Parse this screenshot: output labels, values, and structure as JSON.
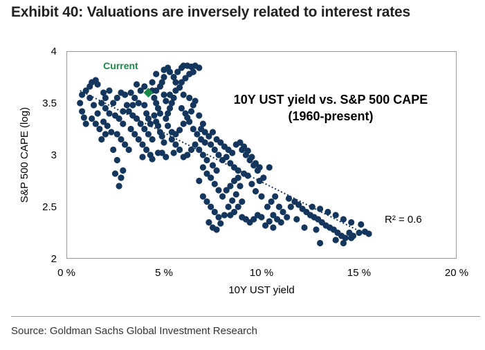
{
  "exhibit_title": "Exhibit 40: Valuations are inversely related to interest rates",
  "source": "Source: Goldman Sachs Global Investment Research",
  "chart_data": {
    "type": "scatter",
    "annotation_line1": "10Y UST yield vs. S&P 500 CAPE",
    "annotation_line2": "(1960-present)",
    "xlabel": "10Y UST yield",
    "ylabel": "S&P 500 CAPE (log)",
    "x_ticks": [
      "0 %",
      "5 %",
      "10 %",
      "15 %",
      "20 %"
    ],
    "y_ticks": [
      "2",
      "2.5",
      "3",
      "3.5",
      "4"
    ],
    "xlim": [
      0,
      20
    ],
    "ylim": [
      2,
      4
    ],
    "r_squared_label": "R² = 0.6",
    "trendline": {
      "x": [
        0.7,
        15.5
      ],
      "y": [
        3.62,
        2.22
      ]
    },
    "current_label": "Current",
    "current_point": {
      "x": 4.2,
      "y": 3.6
    },
    "colors": {
      "points": "#14365d",
      "current": "#1a8a47",
      "trendline": "#14365d"
    },
    "series": [
      {
        "points": [
          [
            0.7,
            3.5
          ],
          [
            0.8,
            3.42
          ],
          [
            0.9,
            3.36
          ],
          [
            1.0,
            3.3
          ],
          [
            0.8,
            3.58
          ],
          [
            1.0,
            3.62
          ],
          [
            1.2,
            3.66
          ],
          [
            1.3,
            3.7
          ],
          [
            1.5,
            3.72
          ],
          [
            1.6,
            3.68
          ],
          [
            1.2,
            3.55
          ],
          [
            1.4,
            3.48
          ],
          [
            1.6,
            3.4
          ],
          [
            1.3,
            3.35
          ],
          [
            1.5,
            3.3
          ],
          [
            1.7,
            3.25
          ],
          [
            1.8,
            3.5
          ],
          [
            2.0,
            3.45
          ],
          [
            2.2,
            3.4
          ],
          [
            1.9,
            3.32
          ],
          [
            2.1,
            3.28
          ],
          [
            2.3,
            3.22
          ],
          [
            2.0,
            3.2
          ],
          [
            1.8,
            3.15
          ],
          [
            2.4,
            3.5
          ],
          [
            2.6,
            3.55
          ],
          [
            2.8,
            3.6
          ],
          [
            3.0,
            3.58
          ],
          [
            2.5,
            3.38
          ],
          [
            2.7,
            3.35
          ],
          [
            2.9,
            3.3
          ],
          [
            2.6,
            3.2
          ],
          [
            2.8,
            3.15
          ],
          [
            3.0,
            3.1
          ],
          [
            3.2,
            3.05
          ],
          [
            2.4,
            3.05
          ],
          [
            2.6,
            2.95
          ],
          [
            2.9,
            2.85
          ],
          [
            2.5,
            2.82
          ],
          [
            2.8,
            2.78
          ],
          [
            2.7,
            2.7
          ],
          [
            3.3,
            3.6
          ],
          [
            3.5,
            3.55
          ],
          [
            3.7,
            3.5
          ],
          [
            3.2,
            3.42
          ],
          [
            3.4,
            3.38
          ],
          [
            3.6,
            3.35
          ],
          [
            3.8,
            3.3
          ],
          [
            3.3,
            3.25
          ],
          [
            3.5,
            3.2
          ],
          [
            3.7,
            3.15
          ],
          [
            3.9,
            3.1
          ],
          [
            4.0,
            3.48
          ],
          [
            4.1,
            3.4
          ],
          [
            4.2,
            3.35
          ],
          [
            4.3,
            3.3
          ],
          [
            4.0,
            3.25
          ],
          [
            4.2,
            3.2
          ],
          [
            4.4,
            3.15
          ],
          [
            4.1,
            3.05
          ],
          [
            4.3,
            3.0
          ],
          [
            3.9,
            2.98
          ],
          [
            4.5,
            3.55
          ],
          [
            4.6,
            3.5
          ],
          [
            4.7,
            3.45
          ],
          [
            4.8,
            3.4
          ],
          [
            4.5,
            3.38
          ],
          [
            4.6,
            3.32
          ],
          [
            4.7,
            3.28
          ],
          [
            4.8,
            3.22
          ],
          [
            4.9,
            3.18
          ],
          [
            5.0,
            3.12
          ],
          [
            4.6,
            3.62
          ],
          [
            4.8,
            3.66
          ],
          [
            4.9,
            3.7
          ],
          [
            5.0,
            3.75
          ],
          [
            4.4,
            3.7
          ],
          [
            4.6,
            3.78
          ],
          [
            5.0,
            3.82
          ],
          [
            5.2,
            3.84
          ],
          [
            5.3,
            3.8
          ],
          [
            5.5,
            3.75
          ],
          [
            5.6,
            3.7
          ],
          [
            5.8,
            3.65
          ],
          [
            5.7,
            3.8
          ],
          [
            5.9,
            3.84
          ],
          [
            6.0,
            3.86
          ],
          [
            6.2,
            3.86
          ],
          [
            6.4,
            3.85
          ],
          [
            6.6,
            3.86
          ],
          [
            6.8,
            3.84
          ],
          [
            6.5,
            3.8
          ],
          [
            6.3,
            3.78
          ],
          [
            6.1,
            3.74
          ],
          [
            5.9,
            3.7
          ],
          [
            5.6,
            3.62
          ],
          [
            5.5,
            3.55
          ],
          [
            5.4,
            3.5
          ],
          [
            5.3,
            3.45
          ],
          [
            5.2,
            3.4
          ],
          [
            5.1,
            3.35
          ],
          [
            5.2,
            3.28
          ],
          [
            5.4,
            3.22
          ],
          [
            5.6,
            3.2
          ],
          [
            5.8,
            3.24
          ],
          [
            6.0,
            3.3
          ],
          [
            6.2,
            3.36
          ],
          [
            6.4,
            3.42
          ],
          [
            6.5,
            3.48
          ],
          [
            6.6,
            3.52
          ],
          [
            6.3,
            3.55
          ],
          [
            6.0,
            3.58
          ],
          [
            5.9,
            3.45
          ],
          [
            6.1,
            3.4
          ],
          [
            6.3,
            3.32
          ],
          [
            6.5,
            3.25
          ],
          [
            6.7,
            3.2
          ],
          [
            6.9,
            3.15
          ],
          [
            7.0,
            3.3
          ],
          [
            6.8,
            3.38
          ],
          [
            6.6,
            3.1
          ],
          [
            6.4,
            3.05
          ],
          [
            6.2,
            3.0
          ],
          [
            6.0,
            2.98
          ],
          [
            5.8,
            3.05
          ],
          [
            5.6,
            3.1
          ],
          [
            5.4,
            3.15
          ],
          [
            6.8,
            3.05
          ],
          [
            7.0,
            3.0
          ],
          [
            7.2,
            2.95
          ],
          [
            7.1,
            3.12
          ],
          [
            7.3,
            3.18
          ],
          [
            7.5,
            3.22
          ],
          [
            7.4,
            3.1
          ],
          [
            7.6,
            3.05
          ],
          [
            7.8,
            3.0
          ],
          [
            8.0,
            2.95
          ],
          [
            7.7,
            3.15
          ],
          [
            7.9,
            3.12
          ],
          [
            8.1,
            3.08
          ],
          [
            8.3,
            3.05
          ],
          [
            8.5,
            3.02
          ],
          [
            8.2,
            2.98
          ],
          [
            8.4,
            2.92
          ],
          [
            8.6,
            2.88
          ],
          [
            8.8,
            2.85
          ],
          [
            9.0,
            3.05
          ],
          [
            9.2,
            3.0
          ],
          [
            9.4,
            2.95
          ],
          [
            9.6,
            2.9
          ],
          [
            9.8,
            2.85
          ],
          [
            8.7,
            3.1
          ],
          [
            8.9,
            3.12
          ],
          [
            9.1,
            3.08
          ],
          [
            9.3,
            3.04
          ],
          [
            9.5,
            2.98
          ],
          [
            9.7,
            2.92
          ],
          [
            9.9,
            2.88
          ],
          [
            7.0,
            2.88
          ],
          [
            7.2,
            2.82
          ],
          [
            7.4,
            2.78
          ],
          [
            7.6,
            2.72
          ],
          [
            7.8,
            2.66
          ],
          [
            7.5,
            2.9
          ],
          [
            7.7,
            2.85
          ],
          [
            6.8,
            2.75
          ],
          [
            7.0,
            2.6
          ],
          [
            7.2,
            2.55
          ],
          [
            7.4,
            2.5
          ],
          [
            7.6,
            2.45
          ],
          [
            7.8,
            2.4
          ],
          [
            7.3,
            2.35
          ],
          [
            7.5,
            2.3
          ],
          [
            7.7,
            2.28
          ],
          [
            7.9,
            2.34
          ],
          [
            8.1,
            2.42
          ],
          [
            8.3,
            2.5
          ],
          [
            8.5,
            2.56
          ],
          [
            8.7,
            2.62
          ],
          [
            8.0,
            2.6
          ],
          [
            8.2,
            2.66
          ],
          [
            8.4,
            2.7
          ],
          [
            8.6,
            2.75
          ],
          [
            8.8,
            2.78
          ],
          [
            9.0,
            2.4
          ],
          [
            9.2,
            2.38
          ],
          [
            9.4,
            2.35
          ],
          [
            9.6,
            2.38
          ],
          [
            9.8,
            2.42
          ],
          [
            10.0,
            2.4
          ],
          [
            10.3,
            2.5
          ],
          [
            10.5,
            2.55
          ],
          [
            10.7,
            2.6
          ],
          [
            10.9,
            2.5
          ],
          [
            11.1,
            2.45
          ],
          [
            11.3,
            2.4
          ],
          [
            11.0,
            2.35
          ],
          [
            10.8,
            2.38
          ],
          [
            10.6,
            2.42
          ],
          [
            10.4,
            2.36
          ],
          [
            10.2,
            2.32
          ],
          [
            11.5,
            2.5
          ],
          [
            11.7,
            2.55
          ],
          [
            11.9,
            2.52
          ],
          [
            12.1,
            2.48
          ],
          [
            12.3,
            2.45
          ],
          [
            12.5,
            2.42
          ],
          [
            12.7,
            2.4
          ],
          [
            12.9,
            2.38
          ],
          [
            13.1,
            2.35
          ],
          [
            13.3,
            2.32
          ],
          [
            13.5,
            2.3
          ],
          [
            13.7,
            2.28
          ],
          [
            13.9,
            2.25
          ],
          [
            14.1,
            2.22
          ],
          [
            14.3,
            2.2
          ],
          [
            14.5,
            2.25
          ],
          [
            14.7,
            2.22
          ],
          [
            15.0,
            2.25
          ],
          [
            15.3,
            2.26
          ],
          [
            15.5,
            2.24
          ],
          [
            13.0,
            2.15
          ],
          [
            13.8,
            2.18
          ],
          [
            14.2,
            2.15
          ],
          [
            14.6,
            2.2
          ],
          [
            12.2,
            2.3
          ],
          [
            12.8,
            2.28
          ],
          [
            11.8,
            2.38
          ],
          [
            12.6,
            2.5
          ],
          [
            13.0,
            2.48
          ],
          [
            13.4,
            2.45
          ],
          [
            13.8,
            2.42
          ],
          [
            14.2,
            2.38
          ],
          [
            14.6,
            2.35
          ],
          [
            15.1,
            2.33
          ],
          [
            10.6,
            2.3
          ],
          [
            10.0,
            2.6
          ],
          [
            9.7,
            2.65
          ],
          [
            9.5,
            2.72
          ],
          [
            9.3,
            2.8
          ],
          [
            9.1,
            2.82
          ],
          [
            8.9,
            2.7
          ],
          [
            9.0,
            2.55
          ],
          [
            8.8,
            2.5
          ],
          [
            8.6,
            2.45
          ],
          [
            8.4,
            2.42
          ],
          [
            11.4,
            2.58
          ],
          [
            10.1,
            2.78
          ],
          [
            10.4,
            2.88
          ],
          [
            9.9,
            2.75
          ],
          [
            3.8,
            3.62
          ],
          [
            4.0,
            3.66
          ],
          [
            3.6,
            3.68
          ],
          [
            4.4,
            3.62
          ],
          [
            2.2,
            3.62
          ],
          [
            2.0,
            3.55
          ],
          [
            1.9,
            3.6
          ],
          [
            3.1,
            3.48
          ],
          [
            2.9,
            3.42
          ],
          [
            3.4,
            3.48
          ],
          [
            5.0,
            3.58
          ],
          [
            5.1,
            3.52
          ],
          [
            5.3,
            3.58
          ],
          [
            4.9,
            3.02
          ],
          [
            5.1,
            2.98
          ],
          [
            5.5,
            3.02
          ],
          [
            4.4,
            2.96
          ],
          [
            4.7,
            3.02
          ],
          [
            6.9,
            3.25
          ],
          [
            7.1,
            3.22
          ]
        ]
      }
    ]
  }
}
